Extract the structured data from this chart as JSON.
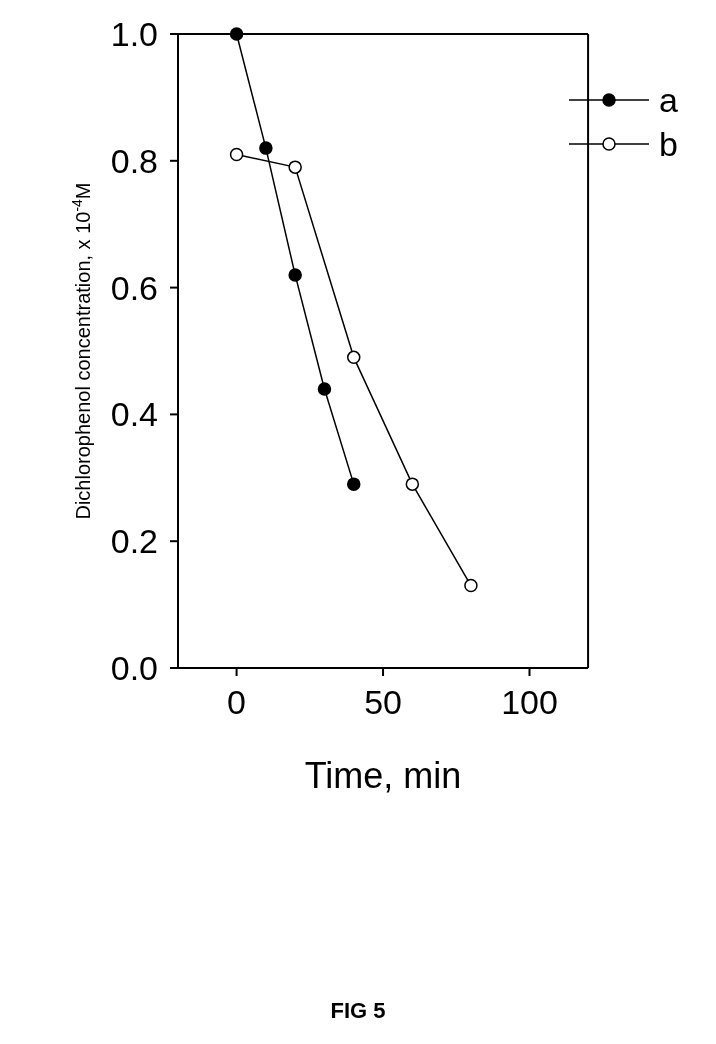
{
  "chart_data": {
    "type": "line",
    "xlabel": "Time, min",
    "ylabel": "Dichlorophenol concentration,  x 10$^{-4}$M",
    "annotations": [
      "FIG 5"
    ],
    "xlim": [
      -20,
      120
    ],
    "xticks": [
      0,
      50,
      100
    ],
    "ylim": [
      0,
      1
    ],
    "yticks": [
      {
        "value": 0,
        "label": "0.0"
      },
      {
        "value": 0.2,
        "label": "0.2"
      },
      {
        "value": 0.4,
        "label": "0.4"
      },
      {
        "value": 0.6,
        "label": "0.6"
      },
      {
        "value": 0.8,
        "label": "0.8"
      },
      {
        "value": 1,
        "label": "1.0"
      }
    ],
    "grid": false,
    "legend": "top right",
    "marker": "circle",
    "line_style": "solid",
    "series": [
      {
        "name": "a",
        "color": "#000000",
        "x": [
          0,
          10,
          20,
          30,
          40
        ],
        "values": [
          1.0,
          0.82,
          0.62,
          0.44,
          0.29
        ]
      },
      {
        "name": "b",
        "color": "#000000",
        "x": [
          0,
          20,
          40,
          60,
          80
        ],
        "values": [
          0.81,
          0.79,
          0.49,
          0.29,
          0.13
        ]
      }
    ]
  }
}
